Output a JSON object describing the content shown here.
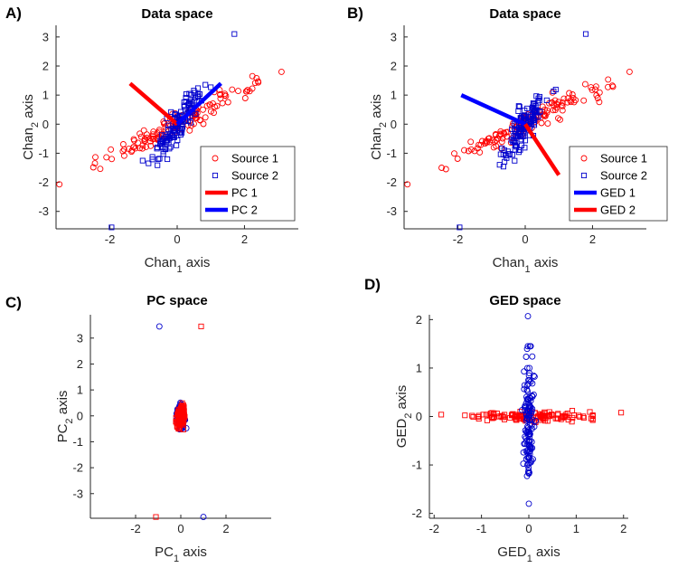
{
  "chart_data": [
    {
      "panel": "A)",
      "title": "Data space",
      "type": "scatter",
      "xlabel": {
        "base": "Chan",
        "sub": "1",
        "suffix": " axis"
      },
      "ylabel": {
        "base": "Chan",
        "sub": "2",
        "suffix": " axis"
      },
      "xlim": [
        -3.6,
        3.6
      ],
      "ylim": [
        -3.6,
        3.4
      ],
      "xticks": [
        -2,
        0,
        2
      ],
      "yticks": [
        -3,
        -2,
        -1,
        0,
        1,
        2,
        3
      ],
      "scatter": [
        {
          "name": "Source 1",
          "marker": "circle",
          "color": "#ff0000",
          "slope": 0.59,
          "spread": 2.5,
          "width": 0.15,
          "n": 130,
          "outliers": [
            [
              -3.5,
              -2.07
            ],
            [
              3.1,
              1.8
            ]
          ]
        },
        {
          "name": "Source 2",
          "marker": "square",
          "color": "#0000cc",
          "slope": 1.85,
          "spread": 1.4,
          "width": 0.15,
          "n": 130,
          "outliers": [
            [
              -1.95,
              -3.55
            ],
            [
              1.7,
              3.1
            ]
          ]
        }
      ],
      "lines": [
        {
          "name": "PC 1",
          "color": "#ff0000",
          "from": [
            0,
            0
          ],
          "to": [
            -1.4,
            1.4
          ]
        },
        {
          "name": "PC 2",
          "color": "#0000ff",
          "from": [
            0,
            0
          ],
          "to": [
            1.3,
            1.4
          ]
        }
      ],
      "legend": [
        "Source 1",
        "Source 2",
        "PC 1",
        "PC 2"
      ],
      "legend_position": "bottom-right"
    },
    {
      "panel": "B)",
      "title": "Data space",
      "type": "scatter",
      "xlabel": {
        "base": "Chan",
        "sub": "1",
        "suffix": " axis"
      },
      "ylabel": {
        "base": "Chan",
        "sub": "2",
        "suffix": " axis"
      },
      "xlim": [
        -3.6,
        3.6
      ],
      "ylim": [
        -3.6,
        3.4
      ],
      "xticks": [
        -2,
        0,
        2
      ],
      "yticks": [
        -3,
        -2,
        -1,
        0,
        1,
        2,
        3
      ],
      "scatter": [
        {
          "name": "Source 1",
          "marker": "circle",
          "color": "#ff0000",
          "slope": 0.59,
          "spread": 2.5,
          "width": 0.15,
          "n": 130,
          "outliers": [
            [
              -3.5,
              -2.07
            ],
            [
              3.1,
              1.8
            ]
          ]
        },
        {
          "name": "Source 2",
          "marker": "square",
          "color": "#0000cc",
          "slope": 1.85,
          "spread": 1.4,
          "width": 0.15,
          "n": 130,
          "outliers": [
            [
              -1.95,
              -3.55
            ],
            [
              1.8,
              3.1
            ]
          ]
        }
      ],
      "lines": [
        {
          "name": "GED 1",
          "color": "#0000ff",
          "from": [
            0,
            0
          ],
          "to": [
            -1.9,
            1.0
          ]
        },
        {
          "name": "GED 2",
          "color": "#ff0000",
          "from": [
            0,
            0
          ],
          "to": [
            1.0,
            -1.75
          ]
        }
      ],
      "legend": [
        "Source 1",
        "Source 2",
        "GED 1",
        "GED 2"
      ],
      "legend_position": "bottom-right"
    },
    {
      "panel": "C)",
      "title": "PC space",
      "type": "scatter",
      "xlabel": {
        "base": "PC",
        "sub": "1",
        "suffix": " axis"
      },
      "ylabel": {
        "base": "PC",
        "sub": "2",
        "suffix": " axis"
      },
      "xlim": [
        -4.0,
        4.0
      ],
      "ylim": [
        -3.95,
        3.9
      ],
      "xticks": [
        -2,
        0,
        2
      ],
      "yticks": [
        -3,
        -2,
        -1,
        0,
        1,
        2,
        3
      ],
      "scatter": [
        {
          "name": "Source 1",
          "marker": "circle",
          "color": "#0000cc",
          "slope": -6.5,
          "spread": 0.5,
          "width": 0.08,
          "n": 130,
          "outliers": [
            [
              -0.95,
              3.45
            ],
            [
              1.0,
              -3.9
            ]
          ]
        },
        {
          "name": "Source 2",
          "marker": "square",
          "color": "#ff0000",
          "slope": 6.5,
          "spread": 0.5,
          "width": 0.08,
          "n": 130,
          "outliers": [
            [
              0.9,
              3.45
            ],
            [
              -1.1,
              -3.9
            ]
          ]
        }
      ],
      "lines": [],
      "legend": [],
      "legend_position": ""
    },
    {
      "panel": "D)",
      "title": "GED space",
      "type": "scatter",
      "xlabel": {
        "base": "GED",
        "sub": "1",
        "suffix": " axis"
      },
      "ylabel": {
        "base": "GED",
        "sub": "2",
        "suffix": " axis"
      },
      "xlim": [
        -2.1,
        2.1
      ],
      "ylim": [
        -2.1,
        2.1
      ],
      "xticks": [
        -2,
        -1,
        0,
        1,
        2
      ],
      "yticks": [
        -2,
        -1,
        0,
        1,
        2
      ],
      "scatter": [
        {
          "name": "Source 1",
          "marker": "square",
          "color": "#ff0000",
          "axis": "x",
          "spread": 1.35,
          "width": 0.05,
          "n": 130,
          "outliers": [
            [
              -1.85,
              0.04
            ],
            [
              1.95,
              0.08
            ]
          ]
        },
        {
          "name": "Source 2",
          "marker": "circle",
          "color": "#0000cc",
          "axis": "y",
          "spread": 1.45,
          "width": 0.05,
          "n": 130,
          "outliers": [
            [
              -0.02,
              2.07
            ],
            [
              0.0,
              -1.8
            ]
          ]
        }
      ],
      "lines": [],
      "legend": [],
      "legend_position": ""
    }
  ]
}
